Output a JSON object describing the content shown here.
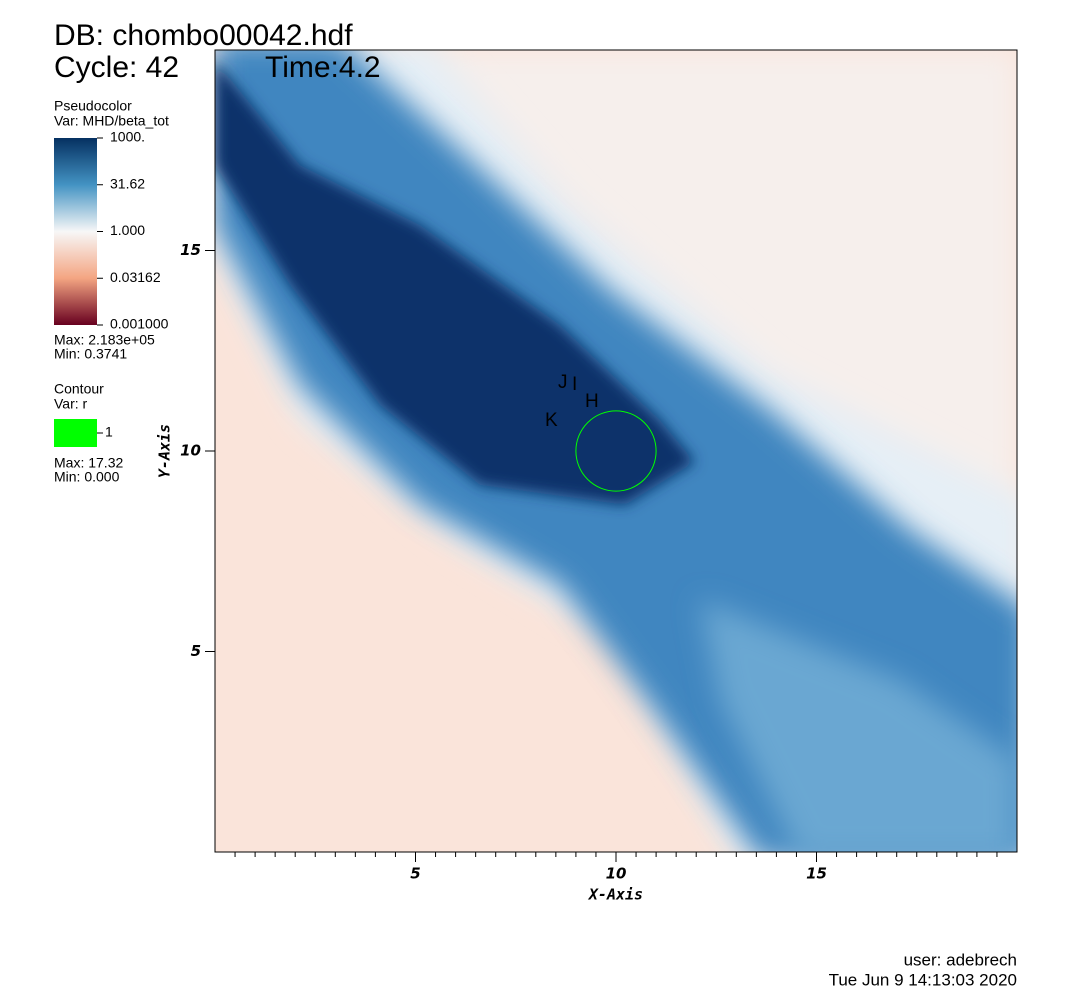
{
  "chart_data": {
    "type": "pseudocolor",
    "title": "DB: chombo00042.hdf",
    "cycle": "Cycle: 42",
    "time": "Time:4.2",
    "xlabel": "X-Axis",
    "ylabel": "Y-Axis",
    "xlim": [
      0,
      20
    ],
    "ylim": [
      0,
      20
    ],
    "xticks": [
      5,
      10,
      15
    ],
    "yticks": [
      5,
      10,
      15
    ],
    "legend": {
      "plot": "Pseudocolor",
      "var": "Var: MHD/beta_tot",
      "scale": "log",
      "ticks": [
        {
          "value": 1000,
          "label": "1000."
        },
        31.62,
        {
          "value": 1,
          "label": "1.000"
        },
        0.03162,
        {
          "value": 0.001,
          "label": "0.001000"
        }
      ],
      "max": "Max:  2.183e+05",
      "min": "Min:  0.3741"
    },
    "contour": {
      "plot": "Contour",
      "var": "Var: r",
      "level": 1,
      "color": "#00ff00",
      "max": "Max:  17.32",
      "min": "Min:  0.000"
    },
    "picks": [
      "J",
      "I",
      "H",
      "K"
    ],
    "user": "user: adebrech",
    "date": "Tue Jun  9 14:13:03 2020"
  }
}
